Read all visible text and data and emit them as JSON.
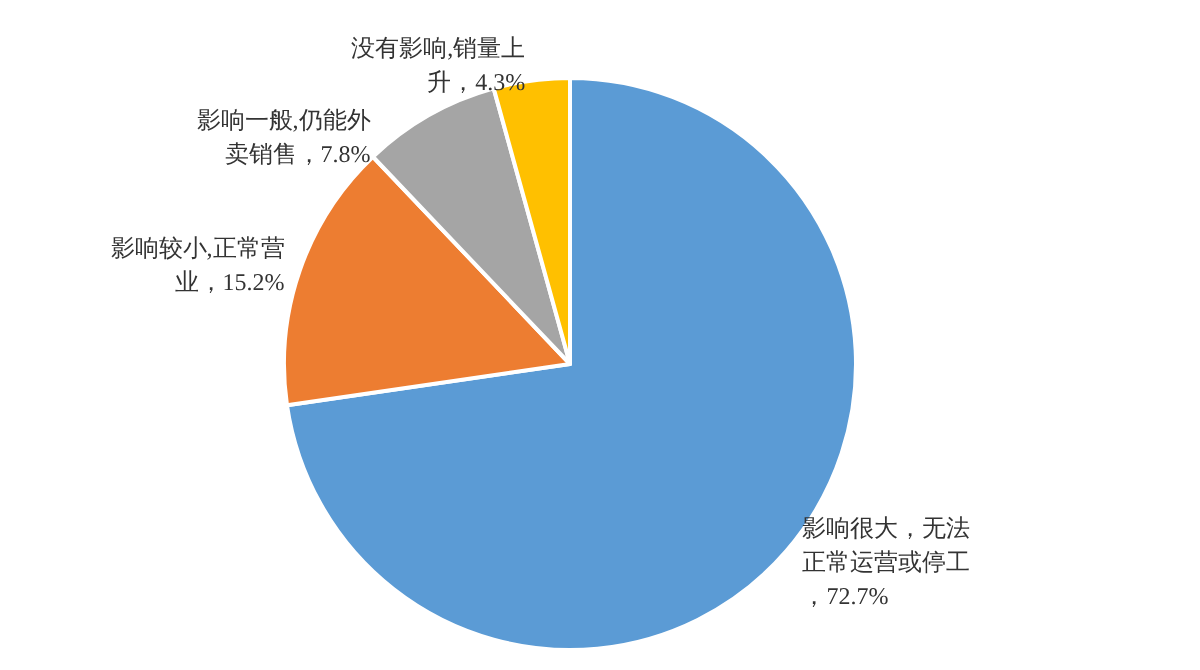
{
  "chart_data": {
    "type": "pie",
    "categories": [
      "影响很大，无法正常运营或停工",
      "影响较小,正常营业",
      "影响一般,仍能外卖销售",
      "没有影响,销量上升"
    ],
    "value_labels": [
      "，72.7%",
      "，15.2%",
      "，7.8%",
      "，4.3%"
    ],
    "values": [
      72.7,
      15.2,
      7.8,
      4.3
    ],
    "colors": [
      "#5b9bd5",
      "#ed7d31",
      "#a5a5a5",
      "#ffc000"
    ],
    "legend": false
  }
}
